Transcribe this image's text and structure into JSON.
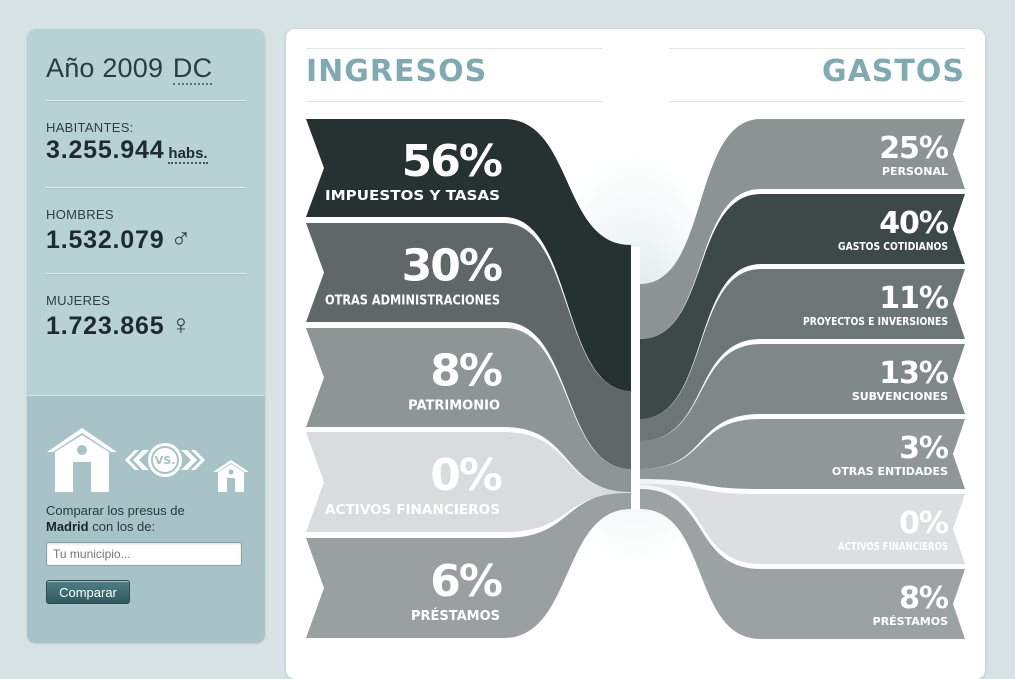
{
  "sidebar": {
    "year_prefix": "Año 2009",
    "year_suffix": "DC",
    "habitantes": {
      "label": "HABITANTES:",
      "value": "3.255.944",
      "unit": "habs."
    },
    "hombres": {
      "label": "HOMBRES",
      "value": "1.532.079",
      "symbol": "♂"
    },
    "mujeres": {
      "label": "MUJERES",
      "value": "1.723.865",
      "symbol": "♀"
    },
    "compare": {
      "vs_label": "VS.",
      "text_before": "Comparar los presus de",
      "city": "Madrid",
      "text_after": "con los de:",
      "input_placeholder": "Tu municipio...",
      "button_label": "Comparar"
    }
  },
  "main": {
    "ingresos_title": "INGRESOS",
    "gastos_title": "GASTOS",
    "ingresos": [
      {
        "pct": "56%",
        "label": "IMPUESTOS Y TASAS",
        "color": "#263131"
      },
      {
        "pct": "30%",
        "label": "OTRAS ADMINISTRACIONES",
        "color": "#5f6767"
      },
      {
        "pct": "8%",
        "label": "PATRIMONIO",
        "color": "#8e9595"
      },
      {
        "pct": "0%",
        "label": "ACTIVOS FINANCIEROS",
        "color": "#d9dcdc"
      },
      {
        "pct": "6%",
        "label": "PRÉSTAMOS",
        "color": "#9aa0a0"
      }
    ],
    "gastos": [
      {
        "pct": "25%",
        "label": "PERSONAL",
        "color": "#8b9393"
      },
      {
        "pct": "40%",
        "label": "GASTOS COTIDIANOS",
        "color": "#3d4848"
      },
      {
        "pct": "11%",
        "label": "PROYECTOS E INVERSIONES",
        "color": "#6d7676"
      },
      {
        "pct": "13%",
        "label": "SUBVENCIONES",
        "color": "#7f8888"
      },
      {
        "pct": "3%",
        "label": "OTRAS ENTIDADES",
        "color": "#8f9797"
      },
      {
        "pct": "0%",
        "label": "ACTIVOS FINANCIEROS",
        "color": "#dcdfdf"
      },
      {
        "pct": "8%",
        "label": "PRÉSTAMOS",
        "color": "#9ca2a2"
      }
    ]
  }
}
